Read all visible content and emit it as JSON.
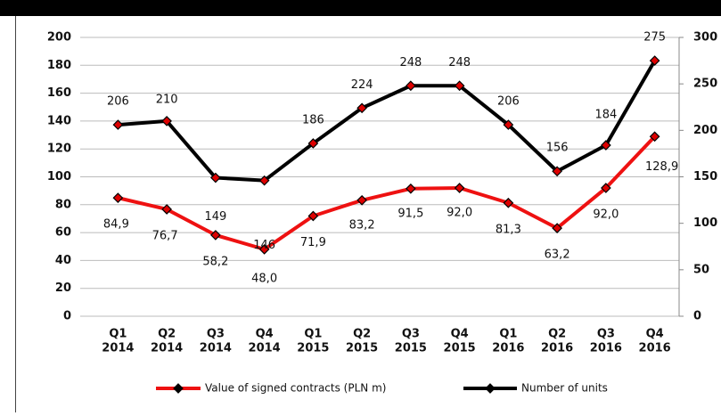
{
  "chart_data": {
    "type": "line",
    "categories": [
      [
        "Q1",
        "2014"
      ],
      [
        "Q2",
        "2014"
      ],
      [
        "Q3",
        "2014"
      ],
      [
        "Q4",
        "2014"
      ],
      [
        "Q1",
        "2015"
      ],
      [
        "Q2",
        "2015"
      ],
      [
        "Q3",
        "2015"
      ],
      [
        "Q4",
        "2015"
      ],
      [
        "Q1",
        "2016"
      ],
      [
        "Q2",
        "2016"
      ],
      [
        "Q3",
        "2016"
      ],
      [
        "Q4",
        "2016"
      ]
    ],
    "series": [
      {
        "name": "Value of signed contracts (PLN m)",
        "color": "#ee1111",
        "marker_color": "#dd0000",
        "values": [
          84.9,
          76.7,
          58.2,
          48.0,
          71.9,
          83.2,
          91.5,
          92.0,
          81.3,
          63.2,
          92.0,
          128.9
        ],
        "value_labels": [
          "84,9",
          "76,7",
          "58,2",
          "48,0",
          "71,9",
          "83,2",
          "91,5",
          "92,0",
          "81,3",
          "63,2",
          "92,0",
          "128,9"
        ]
      },
      {
        "name": "Number of units",
        "color": "#000000",
        "marker_color": "#dd0000",
        "axis": "y2",
        "values": [
          206,
          210,
          149,
          146,
          186,
          224,
          248,
          248,
          206,
          156,
          184,
          275
        ]
      }
    ],
    "ylim": [
      0,
      200
    ],
    "yticks": [
      0,
      20,
      40,
      60,
      80,
      100,
      120,
      140,
      160,
      180,
      200
    ],
    "y2lim": [
      0,
      300
    ],
    "y2ticks": [
      0,
      50,
      100,
      150,
      200,
      250,
      300
    ],
    "grid": true,
    "legend": "bottom"
  }
}
